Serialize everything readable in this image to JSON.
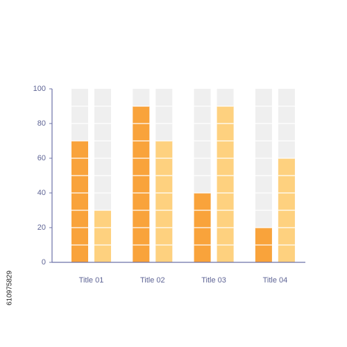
{
  "chart_data": {
    "type": "bar",
    "categories": [
      "Title 01",
      "Title 02",
      "Title 03",
      "Title 04"
    ],
    "series": [
      {
        "color": "#f9a33b",
        "values": [
          70,
          90,
          40,
          20
        ]
      },
      {
        "color": "#fed17f",
        "values": [
          30,
          70,
          90,
          60
        ]
      }
    ],
    "track_color": "#efefef",
    "ylim": [
      0,
      100
    ],
    "yticks": [
      0,
      20,
      40,
      60,
      80,
      100
    ]
  },
  "watermark": "610975829"
}
